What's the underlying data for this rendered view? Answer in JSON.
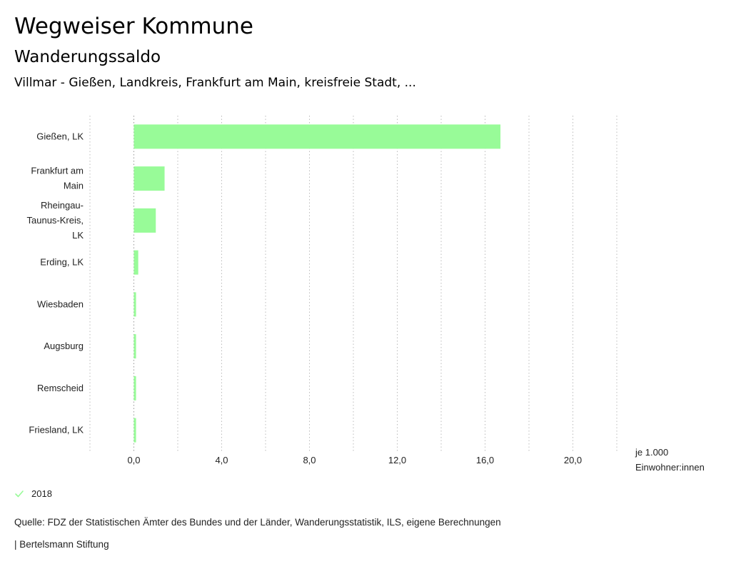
{
  "header": {
    "title": "Wegweiser Kommune",
    "subtitle": "Wanderungssaldo",
    "region": "Villmar - Gießen, Landkreis, Frankfurt am Main, kreisfreie Stadt, ..."
  },
  "chart_data": {
    "type": "bar",
    "orientation": "horizontal",
    "categories": [
      [
        "Gießen, LK"
      ],
      [
        "Frankfurt am",
        "Main"
      ],
      [
        "Rheingau-",
        "Taunus-Kreis,",
        "LK"
      ],
      [
        "Erding, LK"
      ],
      [
        "Wiesbaden"
      ],
      [
        "Augsburg"
      ],
      [
        "Remscheid"
      ],
      [
        "Friesland, LK"
      ]
    ],
    "series": [
      {
        "name": "2018",
        "values": [
          16.7,
          1.4,
          1.0,
          0.2,
          0.1,
          0.1,
          0.1,
          0.1
        ]
      }
    ],
    "xlim": [
      -2.0,
      22.0
    ],
    "xticks": [
      0,
      4,
      8,
      12,
      16,
      20
    ],
    "xtick_labels": [
      "0,0",
      "4,0",
      "8,0",
      "12,0",
      "16,0",
      "20,0"
    ],
    "xlabel": [
      "je 1.000",
      "Einwohner:innen"
    ],
    "bar_color": "#98fb98",
    "grid": "vertical dotted"
  },
  "legend": {
    "label": "2018",
    "icon": "check-icon",
    "color": "#98fb98"
  },
  "footer": {
    "source": "Quelle: FDZ der Statistischen Ämter des Bundes und der Länder, Wanderungsstatistik, ILS, eigene Berechnungen",
    "credit": "| Bertelsmann Stiftung"
  }
}
